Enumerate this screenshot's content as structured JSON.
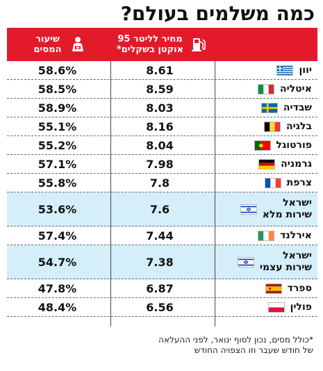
{
  "title": "כמה משלמים בעולם?",
  "headers": {
    "price": "מחיר לליטר 95 אוקטן בשקלים*",
    "tax": "שיעור המסים",
    "price_icon": "fuel-pump-icon",
    "tax_icon": "person-paying-icon"
  },
  "rows": [
    {
      "country": "יוון",
      "price": "8.61",
      "tax": "58.6%",
      "flag": "greece"
    },
    {
      "country": "איטליה",
      "price": "8.59",
      "tax": "58.5%",
      "flag": "italy"
    },
    {
      "country": "שבדיה",
      "price": "8.03",
      "tax": "58.9%",
      "flag": "sweden"
    },
    {
      "country": "בלגיה",
      "price": "8.16",
      "tax": "55.1%",
      "flag": "belgium"
    },
    {
      "country": "פורטוגל",
      "price": "8.04",
      "tax": "55.2%",
      "flag": "portugal"
    },
    {
      "country": "גרמניה",
      "price": "7.98",
      "tax": "57.1%",
      "flag": "germany"
    },
    {
      "country": "צרפת",
      "price": "7.8",
      "tax": "55.8%",
      "flag": "france"
    },
    {
      "country": "ישראל שירות מלא",
      "line1": "ישראל",
      "line2": "שירות מלא",
      "price": "7.6",
      "tax": "53.6%",
      "flag": "israel",
      "highlight": true
    },
    {
      "country": "אירלנד",
      "price": "7.44",
      "tax": "57.4%",
      "flag": "ireland"
    },
    {
      "country": "ישראל שירות עצמי",
      "line1": "ישראל",
      "line2": "שירות עצמי",
      "price": "7.38",
      "tax": "54.7%",
      "flag": "israel",
      "highlight": true
    },
    {
      "country": "ספרד",
      "price": "6.87",
      "tax": "47.8%",
      "flag": "spain"
    },
    {
      "country": "פולין",
      "price": "6.56",
      "tax": "48.4%",
      "flag": "poland"
    }
  ],
  "footnote": {
    "line1": "*כולל מסים, נכון לסוף ינואר, לפני ההעלאה",
    "line2": "של חודש שעבר וזו הצפויה החודש"
  },
  "colors": {
    "header_bg": "#e21a2a",
    "highlight_bg": "#d4eefa"
  }
}
